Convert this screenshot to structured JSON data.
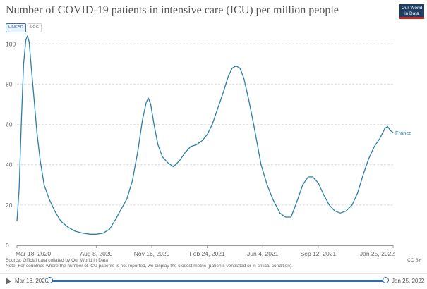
{
  "title": "Number of COVID-19 patients in intensive care (ICU) per million people",
  "logo": {
    "line1": "Our World",
    "line2": "in Data"
  },
  "scale_toggle": {
    "linear": "LINEAR",
    "log": "LOG",
    "active": "linear"
  },
  "colors": {
    "series": "#2c7fa8",
    "grid": "#dddddd",
    "axis": "#999999",
    "logo_bg": "#1d3d63",
    "logo_accent": "#ce261e",
    "timeline": "#2e6cb5"
  },
  "chart_data": {
    "type": "line",
    "title": "Number of COVID-19 patients in intensive care (ICU) per million people",
    "xlabel": "",
    "ylabel": "",
    "xlim": [
      "2020-03-18",
      "2022-01-25"
    ],
    "ylim": [
      0,
      105
    ],
    "yticks": [
      0,
      20,
      40,
      60,
      80,
      100
    ],
    "xtick_labels": [
      "Mar 18, 2020",
      "Aug 8, 2020",
      "Nov 16, 2020",
      "Feb 24, 2021",
      "Jun 4, 2021",
      "Sep 12, 2021",
      "Jan 25, 2022"
    ],
    "xtick_dates": [
      "2020-03-18",
      "2020-08-08",
      "2020-11-16",
      "2021-02-24",
      "2021-06-04",
      "2021-09-12",
      "2022-01-25"
    ],
    "grid": "horizontal dashed",
    "series": [
      {
        "name": "France",
        "label_position": "end of line",
        "points": [
          [
            "2020-03-18",
            12
          ],
          [
            "2020-03-22",
            28
          ],
          [
            "2020-03-26",
            62
          ],
          [
            "2020-03-30",
            90
          ],
          [
            "2020-04-03",
            102
          ],
          [
            "2020-04-06",
            104
          ],
          [
            "2020-04-09",
            101
          ],
          [
            "2020-04-13",
            88
          ],
          [
            "2020-04-18",
            72
          ],
          [
            "2020-04-23",
            56
          ],
          [
            "2020-04-29",
            42
          ],
          [
            "2020-05-06",
            30
          ],
          [
            "2020-05-15",
            23
          ],
          [
            "2020-05-25",
            17
          ],
          [
            "2020-06-05",
            12
          ],
          [
            "2020-06-18",
            9
          ],
          [
            "2020-07-01",
            7
          ],
          [
            "2020-07-15",
            6
          ],
          [
            "2020-07-28",
            5.5
          ],
          [
            "2020-08-08",
            5.5
          ],
          [
            "2020-08-20",
            6
          ],
          [
            "2020-09-01",
            8
          ],
          [
            "2020-09-12",
            13
          ],
          [
            "2020-09-22",
            18
          ],
          [
            "2020-10-02",
            23
          ],
          [
            "2020-10-12",
            32
          ],
          [
            "2020-10-22",
            47
          ],
          [
            "2020-10-30",
            62
          ],
          [
            "2020-11-06",
            71
          ],
          [
            "2020-11-10",
            73
          ],
          [
            "2020-11-14",
            70
          ],
          [
            "2020-11-20",
            60
          ],
          [
            "2020-11-27",
            50
          ],
          [
            "2020-12-05",
            44
          ],
          [
            "2020-12-15",
            41
          ],
          [
            "2020-12-25",
            39
          ],
          [
            "2021-01-05",
            42
          ],
          [
            "2021-01-15",
            46
          ],
          [
            "2021-01-25",
            49
          ],
          [
            "2021-02-05",
            50
          ],
          [
            "2021-02-15",
            52
          ],
          [
            "2021-02-24",
            55
          ],
          [
            "2021-03-05",
            60
          ],
          [
            "2021-03-15",
            68
          ],
          [
            "2021-03-25",
            76
          ],
          [
            "2021-04-03",
            84
          ],
          [
            "2021-04-10",
            88
          ],
          [
            "2021-04-17",
            89
          ],
          [
            "2021-04-24",
            88
          ],
          [
            "2021-05-01",
            83
          ],
          [
            "2021-05-10",
            72
          ],
          [
            "2021-05-20",
            58
          ],
          [
            "2021-06-01",
            40
          ],
          [
            "2021-06-12",
            30
          ],
          [
            "2021-06-22",
            23
          ],
          [
            "2021-07-05",
            16
          ],
          [
            "2021-07-15",
            14
          ],
          [
            "2021-07-25",
            14
          ],
          [
            "2021-08-05",
            22
          ],
          [
            "2021-08-15",
            30
          ],
          [
            "2021-08-25",
            34
          ],
          [
            "2021-09-02",
            34
          ],
          [
            "2021-09-12",
            31
          ],
          [
            "2021-09-22",
            25
          ],
          [
            "2021-10-02",
            20
          ],
          [
            "2021-10-12",
            17
          ],
          [
            "2021-10-22",
            16
          ],
          [
            "2021-11-01",
            17
          ],
          [
            "2021-11-12",
            20
          ],
          [
            "2021-11-22",
            26
          ],
          [
            "2021-12-02",
            35
          ],
          [
            "2021-12-12",
            43
          ],
          [
            "2021-12-22",
            49
          ],
          [
            "2022-01-01",
            53
          ],
          [
            "2022-01-10",
            58
          ],
          [
            "2022-01-15",
            59
          ],
          [
            "2022-01-20",
            57
          ],
          [
            "2022-01-25",
            56
          ]
        ]
      }
    ]
  },
  "footer": {
    "source": "Source: Official data collated by Our World in Data",
    "note": "Note: For countries where the number of ICU patients is not reported, we display the closest metric (patients ventilated or in critical condition).",
    "license": "CC BY"
  },
  "timeline": {
    "start": "Mar 18, 2020",
    "end": "Jan 25, 2022",
    "range_start_fraction": 0,
    "range_end_fraction": 1
  }
}
